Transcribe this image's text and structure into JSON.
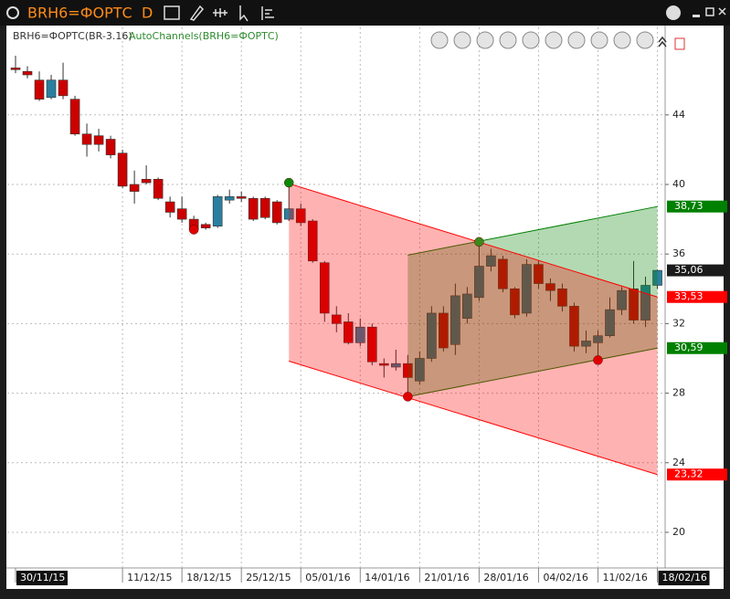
{
  "window": {
    "title": "BRH6=ФОРТС",
    "period": "D"
  },
  "chart_data": {
    "type": "candlestick",
    "categories": [
      "30/11/15",
      null,
      null,
      null,
      null,
      null,
      null,
      null,
      null,
      "11/12/15",
      null,
      null,
      null,
      null,
      "18/12/15",
      null,
      null,
      null,
      null,
      "25/12/15",
      null,
      null,
      null,
      null,
      "05/01/16",
      null,
      null,
      null,
      null,
      "14/01/16",
      null,
      null,
      null,
      null,
      "21/01/16",
      null,
      null,
      null,
      null,
      "28/01/16",
      null,
      null,
      null,
      null,
      "04/02/16",
      null,
      null,
      null,
      null,
      "11/02/16",
      null,
      null,
      null,
      null,
      "18/02/16"
    ],
    "series": [
      {
        "name": "BRH6=ФОРТС(BR-3.16)",
        "up_color": "#2b7f9e",
        "down_color": "#cc0000",
        "open": [
          46.7,
          46.5,
          46.0,
          45.0,
          46.0,
          44.9,
          42.9,
          42.8,
          42.6,
          41.8,
          40.0,
          40.3,
          40.3,
          39.0,
          38.6,
          38.0,
          37.7,
          37.6,
          39.1,
          39.3,
          39.2,
          39.2,
          39.0,
          38.0,
          38.6,
          37.9,
          35.5,
          32.5,
          32.1,
          30.9,
          31.8,
          29.7,
          29.5,
          29.7,
          28.7,
          30.0,
          32.6,
          30.8,
          32.3,
          33.5,
          35.3,
          35.7,
          34.0,
          32.6,
          35.4,
          34.3,
          34.0,
          33.0,
          30.7,
          30.9,
          31.3,
          32.8,
          34.0,
          32.2,
          34.2
        ],
        "high": [
          47.4,
          46.8,
          46.5,
          46.3,
          47.0,
          45.1,
          43.5,
          43.2,
          42.8,
          42.0,
          40.8,
          41.1,
          40.4,
          39.3,
          39.3,
          38.2,
          37.8,
          39.4,
          39.7,
          39.6,
          39.3,
          39.3,
          39.1,
          40.1,
          38.9,
          38.0,
          35.6,
          33.0,
          32.6,
          32.3,
          32.0,
          30.0,
          30.5,
          30.2,
          30.4,
          33.0,
          33.0,
          34.3,
          34.1,
          36.8,
          36.3,
          35.9,
          34.1,
          35.7,
          35.6,
          34.6,
          34.3,
          33.2,
          31.6,
          31.6,
          33.5,
          34.1,
          35.6,
          34.7,
          35.1
        ],
        "low": [
          46.4,
          46.1,
          44.8,
          44.9,
          44.9,
          42.8,
          41.6,
          41.9,
          41.5,
          39.8,
          38.9,
          40.0,
          39.1,
          38.1,
          37.8,
          37.2,
          37.4,
          37.5,
          38.9,
          39.0,
          37.9,
          38.0,
          37.7,
          37.9,
          37.6,
          35.5,
          32.1,
          31.5,
          30.8,
          30.7,
          29.6,
          28.9,
          29.3,
          27.9,
          28.5,
          29.8,
          30.4,
          30.2,
          32.0,
          33.3,
          35.0,
          33.8,
          32.3,
          32.4,
          34.0,
          33.3,
          32.7,
          30.4,
          30.3,
          29.8,
          31.2,
          32.5,
          32.0,
          31.8,
          34.0
        ],
        "close": [
          46.6,
          46.3,
          44.9,
          46.0,
          45.1,
          42.9,
          42.3,
          42.3,
          41.7,
          39.9,
          39.6,
          40.1,
          39.2,
          38.4,
          38.0,
          37.4,
          37.5,
          39.3,
          39.3,
          39.2,
          38.0,
          38.1,
          37.8,
          38.6,
          37.8,
          35.6,
          32.6,
          32.0,
          30.9,
          31.8,
          29.8,
          29.6,
          29.7,
          28.9,
          30.0,
          32.6,
          30.6,
          33.6,
          33.7,
          35.3,
          35.9,
          34.0,
          32.5,
          35.4,
          34.3,
          33.9,
          33.0,
          30.7,
          31.0,
          31.3,
          32.8,
          33.9,
          32.2,
          34.2,
          35.06
        ]
      }
    ],
    "last_price": {
      "value": 35.06,
      "label": "35,06",
      "color": "#1a1a1a"
    },
    "overlay": {
      "name": "AutoChannels(BRH6=ФОРТС)",
      "color": "#2e8b2e",
      "channels": [
        {
          "color": "#008000",
          "from": 33,
          "to": 54,
          "upper": [
            35.94,
            38.73
          ],
          "lower": [
            27.8,
            30.59
          ],
          "value_labels": {
            "upper": "38,73",
            "lower": "30,59"
          }
        },
        {
          "color": "#ff0000",
          "from": 23,
          "to": 54,
          "upper": [
            40.05,
            33.53
          ],
          "lower": [
            29.84,
            23.32
          ],
          "value_labels": {
            "upper": "33,53",
            "lower": "23,32"
          }
        }
      ],
      "pivots": [
        {
          "index": 15,
          "value": 37.4,
          "color": "#e00000"
        },
        {
          "index": 23,
          "value": 40.1,
          "color": "#0a8a0a"
        },
        {
          "index": 33,
          "value": 27.8,
          "color": "#e00000"
        },
        {
          "index": 39,
          "value": 36.7,
          "color": "#3a8a1a"
        },
        {
          "index": 49,
          "value": 29.9,
          "color": "#e00000"
        }
      ]
    },
    "ylim": [
      17.95,
      49.03
    ],
    "yticks": [
      20,
      24,
      28,
      32,
      36,
      40,
      44
    ],
    "grid": true
  }
}
